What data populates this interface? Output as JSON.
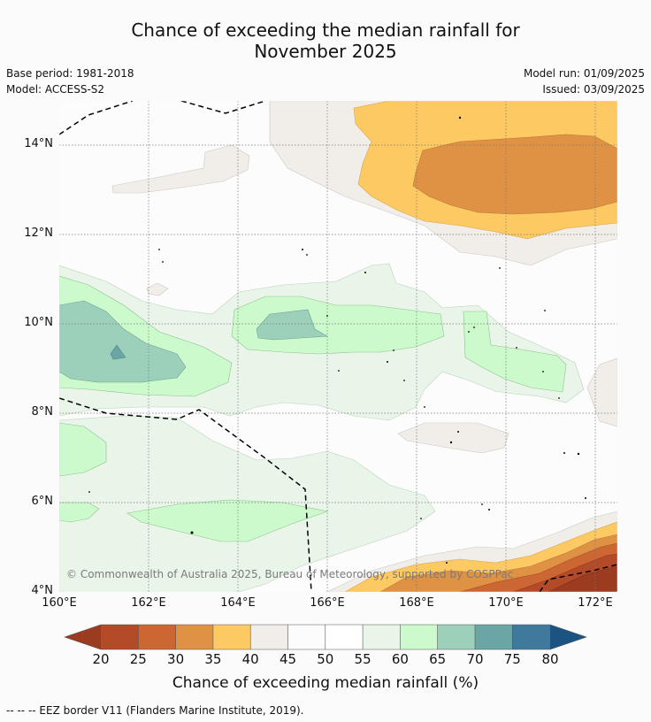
{
  "title_line1": "Chance of exceeding the median rainfall for",
  "title_line2": "November 2025",
  "base_period": "Base period: 1981-2018",
  "model": "Model: ACCESS-S2",
  "model_run": "Model run: 01/09/2025",
  "issued": "Issued: 03/09/2025",
  "copyright": "© Commonwealth of Australia 2025, Bureau of Meteorology, supported by COSPPac",
  "lat_labels": [
    "14°N",
    "12°N",
    "10°N",
    "8°N",
    "6°N",
    "4°N"
  ],
  "lon_labels": [
    "160°E",
    "162°E",
    "164°E",
    "166°E",
    "168°E",
    "170°E",
    "172°E"
  ],
  "colorbar": {
    "ticks": [
      "20",
      "25",
      "30",
      "35",
      "40",
      "45",
      "50",
      "55",
      "60",
      "65",
      "70",
      "75",
      "80"
    ],
    "colors": [
      "#9b3b20",
      "#b34a28",
      "#cc6632",
      "#e09244",
      "#fdc963",
      "#f1ede8",
      "#fbfcfb",
      "#ffffff",
      "#eaf5ea",
      "#ccfacc",
      "#9dd0bb",
      "#6ba5a5",
      "#3f7a9c",
      "#1b5482"
    ],
    "label": "Chance of exceeding median rainfall (%)"
  },
  "footnote": "--  --  -- EEZ border V11 (Flanders Marine Institute, 2019)."
}
